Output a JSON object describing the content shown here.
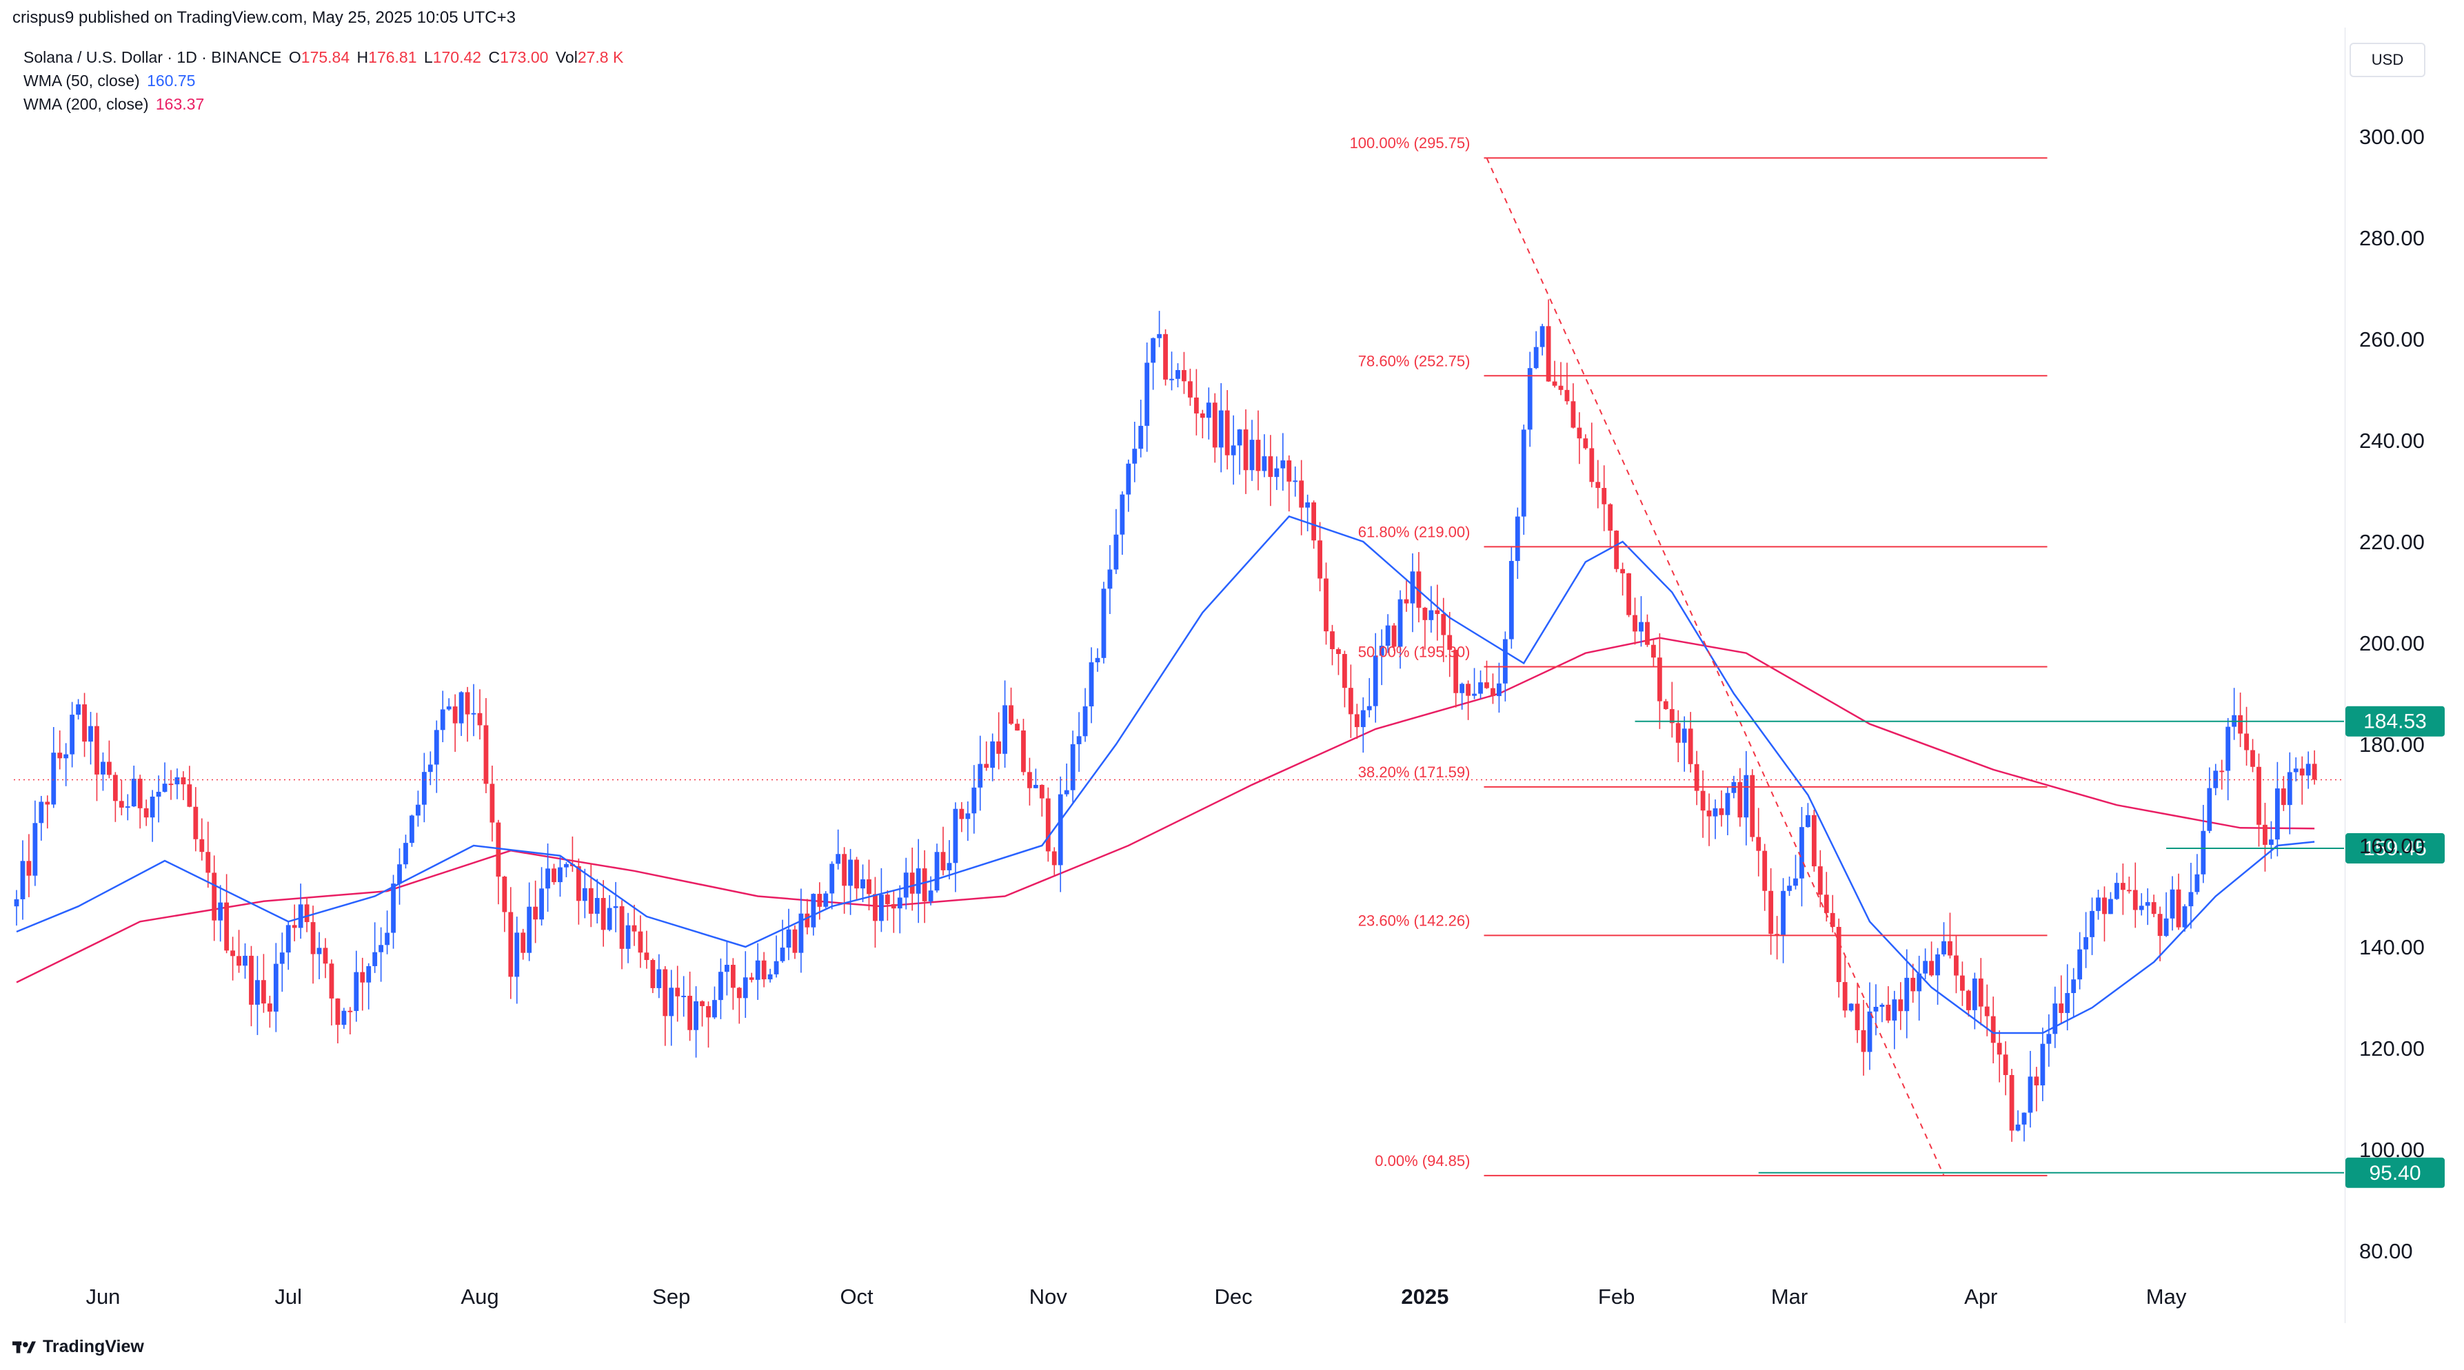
{
  "header": {
    "publisher": "crispus9 published on TradingView.com, May 25, 2025 10:05 UTC+3"
  },
  "legend": {
    "symbol": "Solana / U.S. Dollar · 1D · BINANCE",
    "o_label": "O",
    "o_value": "175.84",
    "h_label": "H",
    "h_value": "176.81",
    "l_label": "L",
    "l_value": "170.42",
    "c_label": "C",
    "c_value": "173.00",
    "vol_label": "Vol",
    "vol_value": "27.8 K",
    "wma50_label": "WMA (50, close)",
    "wma50_value": "160.75",
    "wma200_label": "WMA (200, close)",
    "wma200_value": "163.37"
  },
  "currency": "USD",
  "footer": {
    "brand": "TradingView"
  },
  "colors": {
    "up": "#2962ff",
    "down": "#f23645",
    "wma50": "#2962ff",
    "wma200": "#e91e63",
    "fib": "#f23645",
    "level": "#089981",
    "axis_text": "#131722"
  },
  "chart_data": {
    "type": "candlestick",
    "symbol": "SOLUSD",
    "timeframe": "1D",
    "ylim": [
      80,
      305
    ],
    "y_ticks": [
      80,
      100,
      120,
      140,
      160,
      180,
      200,
      220,
      240,
      260,
      280,
      300
    ],
    "y_tick_labels": [
      "80.00",
      "100.00",
      "120.00",
      "140.00",
      "160.00",
      "180.00",
      "200.00",
      "220.00",
      "240.00",
      "260.00",
      "280.00",
      "300.00"
    ],
    "x_ticks": [
      {
        "label": "Jun",
        "day": 14
      },
      {
        "label": "Jul",
        "day": 44
      },
      {
        "label": "Aug",
        "day": 75
      },
      {
        "label": "Sep",
        "day": 106
      },
      {
        "label": "Oct",
        "day": 136
      },
      {
        "label": "Nov",
        "day": 167
      },
      {
        "label": "Dec",
        "day": 197
      },
      {
        "label": "2025",
        "day": 228,
        "bold": true
      },
      {
        "label": "Feb",
        "day": 259
      },
      {
        "label": "Mar",
        "day": 287
      },
      {
        "label": "Apr",
        "day": 318
      },
      {
        "label": "May",
        "day": 348
      }
    ],
    "price_path": [
      [
        0,
        148
      ],
      [
        6,
        175
      ],
      [
        10,
        185
      ],
      [
        16,
        168
      ],
      [
        26,
        172
      ],
      [
        32,
        148
      ],
      [
        40,
        128
      ],
      [
        46,
        150
      ],
      [
        52,
        126
      ],
      [
        60,
        145
      ],
      [
        68,
        182
      ],
      [
        74,
        188
      ],
      [
        80,
        136
      ],
      [
        88,
        158
      ],
      [
        98,
        142
      ],
      [
        108,
        126
      ],
      [
        116,
        133
      ],
      [
        124,
        140
      ],
      [
        134,
        156
      ],
      [
        140,
        148
      ],
      [
        148,
        153
      ],
      [
        160,
        185
      ],
      [
        168,
        160
      ],
      [
        174,
        195
      ],
      [
        184,
        258
      ],
      [
        196,
        240
      ],
      [
        208,
        230
      ],
      [
        216,
        182
      ],
      [
        226,
        212
      ],
      [
        234,
        192
      ],
      [
        240,
        192
      ],
      [
        246,
        262
      ],
      [
        256,
        230
      ],
      [
        264,
        198
      ],
      [
        274,
        168
      ],
      [
        280,
        170
      ],
      [
        284,
        143
      ],
      [
        290,
        165
      ],
      [
        298,
        120
      ],
      [
        306,
        132
      ],
      [
        312,
        137
      ],
      [
        320,
        125
      ],
      [
        324,
        102
      ],
      [
        330,
        128
      ],
      [
        338,
        150
      ],
      [
        346,
        145
      ],
      [
        352,
        150
      ],
      [
        356,
        175
      ],
      [
        360,
        184
      ],
      [
        364,
        162
      ],
      [
        368,
        175
      ],
      [
        372,
        173
      ]
    ],
    "wma_path": {
      "wma50": [
        [
          0,
          143
        ],
        [
          10,
          148
        ],
        [
          24,
          157
        ],
        [
          44,
          145
        ],
        [
          58,
          150
        ],
        [
          74,
          160
        ],
        [
          88,
          158
        ],
        [
          102,
          146
        ],
        [
          118,
          140
        ],
        [
          132,
          148
        ],
        [
          148,
          153
        ],
        [
          166,
          160
        ],
        [
          178,
          180
        ],
        [
          192,
          206
        ],
        [
          206,
          225
        ],
        [
          218,
          220
        ],
        [
          232,
          205
        ],
        [
          244,
          196
        ],
        [
          254,
          216
        ],
        [
          260,
          220
        ],
        [
          268,
          210
        ],
        [
          278,
          190
        ],
        [
          290,
          170
        ],
        [
          300,
          145
        ],
        [
          310,
          132
        ],
        [
          320,
          123
        ],
        [
          328,
          123
        ],
        [
          336,
          128
        ],
        [
          346,
          137
        ],
        [
          356,
          150
        ],
        [
          366,
          160
        ],
        [
          372,
          160.75
        ]
      ],
      "wma200": [
        [
          0,
          133
        ],
        [
          20,
          145
        ],
        [
          40,
          149
        ],
        [
          60,
          151
        ],
        [
          80,
          159
        ],
        [
          100,
          155
        ],
        [
          120,
          150
        ],
        [
          140,
          148
        ],
        [
          160,
          150
        ],
        [
          180,
          160
        ],
        [
          200,
          172
        ],
        [
          220,
          183
        ],
        [
          240,
          190
        ],
        [
          254,
          198
        ],
        [
          266,
          201
        ],
        [
          280,
          198
        ],
        [
          300,
          184
        ],
        [
          320,
          175
        ],
        [
          340,
          168
        ],
        [
          360,
          163.5
        ],
        [
          372,
          163.37
        ]
      ]
    },
    "fibonacci": {
      "start_day": 238,
      "end_day": 312,
      "levels": [
        {
          "ratio_label": "100.00%",
          "price": 295.75,
          "price_label": "(295.75)"
        },
        {
          "ratio_label": "78.60%",
          "price": 252.75,
          "price_label": "(252.75)"
        },
        {
          "ratio_label": "61.80%",
          "price": 219.0,
          "price_label": "(219.00)"
        },
        {
          "ratio_label": "50.00%",
          "price": 195.3,
          "price_label": "(195.30)"
        },
        {
          "ratio_label": "38.20%",
          "price": 171.59,
          "price_label": "(171.59)"
        },
        {
          "ratio_label": "23.60%",
          "price": 142.26,
          "price_label": "(142.26)"
        },
        {
          "ratio_label": "0.00%",
          "price": 94.85,
          "price_label": "(94.85)"
        }
      ],
      "trend_from": {
        "day": 238,
        "price": 295.75
      },
      "trend_to": {
        "day": 312,
        "price": 94.85
      }
    },
    "horizontal_levels": [
      {
        "price": 184.53,
        "label": "184.53",
        "from_day": 262
      },
      {
        "price": 159.45,
        "label": "159.45",
        "from_day": 348
      },
      {
        "price": 95.4,
        "label": "95.40",
        "from_day": 282
      }
    ],
    "last_price": 173.0,
    "volume_label": "27.8 K"
  }
}
